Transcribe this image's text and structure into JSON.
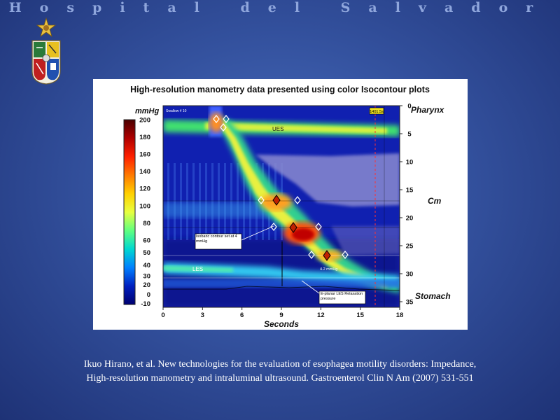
{
  "header": {
    "title": "Hospital del Salvador"
  },
  "emblem": {
    "icon": "university-coat-of-arms-icon"
  },
  "chart_data": {
    "type": "heatmap",
    "title": "High-resolution manometry data presented using color Isocontour plots",
    "xlabel": "Seconds",
    "x_ticks": [
      0,
      3,
      6,
      9,
      12,
      15,
      18
    ],
    "xlim": [
      0,
      18
    ],
    "ylabel": "Cm",
    "y_ticks": [
      0,
      5,
      10,
      15,
      20,
      25,
      30,
      35
    ],
    "ylim": [
      0,
      36
    ],
    "y_end_labels": {
      "top": "Pharynx",
      "bottom": "Stomach"
    },
    "colorbar": {
      "label": "mmHg",
      "ticks": [
        200,
        180,
        160,
        140,
        120,
        100,
        80,
        60,
        50,
        40,
        30,
        20,
        0,
        -10
      ],
      "colors": [
        "#4a0000",
        "#b00000",
        "#ff2000",
        "#ff7a00",
        "#ffd000",
        "#e8ff40",
        "#60ff80",
        "#00d8d0",
        "#0080ff",
        "#0020c0",
        "#000070"
      ]
    },
    "annotations": {
      "ues": "UES",
      "les": "LES",
      "isobaric": "Isobaric contour set at 4 mmHg",
      "eplanar": "E-planar LES Relaxation pressure",
      "small_value": "4.2 mmHg",
      "top_right_box": "1401.5s",
      "top_left_small": "Swallow # 10"
    }
  },
  "caption": {
    "text": "Ikuo Hirano, et al. New technologies for the evaluation of esophagea motility disorders: Impedance, High-resolution manometry and intraluminal ultrasound. Gastroenterol Clin N Am (2007) 531-551"
  }
}
